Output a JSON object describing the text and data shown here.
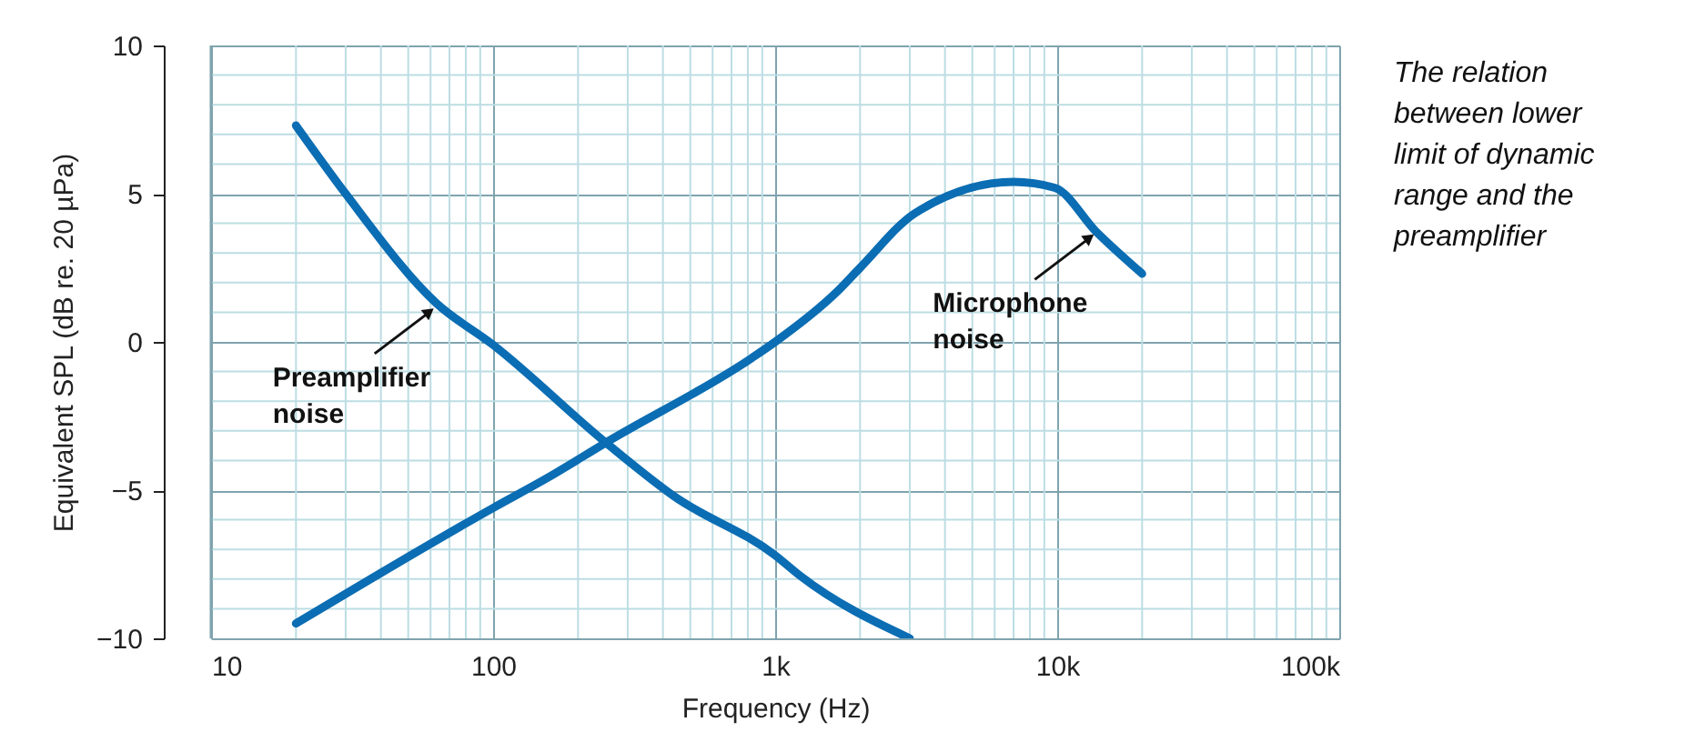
{
  "chart_data": {
    "type": "line",
    "xlabel": "Frequency (Hz)",
    "ylabel": "Equivalent SPL (dB re. 20 µPa)",
    "log": "x",
    "xlim": [
      10,
      100000
    ],
    "xticks": [
      10,
      100,
      {
        "value": 1000,
        "label": "1k"
      },
      {
        "value": 10000,
        "label": "10k"
      },
      {
        "value": 100000,
        "label": "100k"
      }
    ],
    "ylim": [
      -10,
      10
    ],
    "yticks": [
      -10,
      -5,
      0,
      5,
      10
    ],
    "grid": true,
    "marker": "none",
    "line_style": "solid",
    "series": [
      {
        "color": "#0b6db3",
        "x": [
          20,
          30,
          63,
          100,
          251,
          437,
          1000,
          1230,
          3000
        ],
        "values": [
          7.3,
          5.0,
          1.3,
          -0.1,
          -3.4,
          -5.2,
          -7.2,
          -7.9,
          -10
        ]
      },
      {
        "color": "#0b6db3",
        "x": [
          20,
          100,
          155,
          251,
          824,
          1000,
          1660,
          2000,
          3140,
          7000,
          9800,
          13800,
          20000
        ],
        "values": [
          -9.5,
          -5.6,
          -4.6,
          -3.4,
          -0.55,
          0,
          1.7,
          2.5,
          4.35,
          5.4,
          5.2,
          3.7,
          2.3
        ]
      }
    ],
    "annotations": [
      {
        "text": "Preamplifier noise",
        "x": 63,
        "y": 1.2
      },
      {
        "text": "Microphone noise",
        "x": 13800,
        "y": 3.7
      },
      "The relation between lower limit of dynamic range and the preamplifier"
    ]
  }
}
